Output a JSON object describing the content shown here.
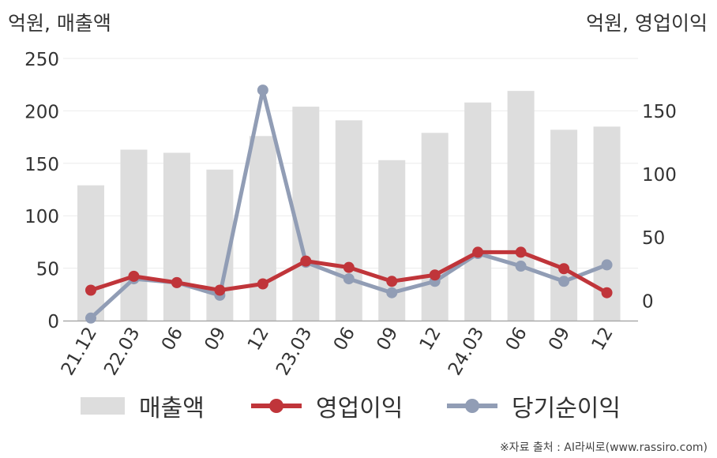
{
  "chart_data": {
    "type": "bar",
    "categories": [
      "21.12",
      "22.03",
      "06",
      "09",
      "12",
      "23.03",
      "06",
      "09",
      "12",
      "24.03",
      "06",
      "09",
      "12"
    ],
    "y_left_label": "억원, 매출액",
    "y_right_label": "억원, 영업이익",
    "y_left_lim": [
      0,
      250
    ],
    "y_left_ticks": [
      0,
      50,
      100,
      150,
      200,
      250
    ],
    "y_right_lim": [
      -16,
      191
    ],
    "y_right_ticks": [
      0,
      50,
      100,
      150
    ],
    "grid": true,
    "legend_position": "bottom",
    "series": [
      {
        "name": "매출액",
        "type": "bar",
        "axis": "left",
        "color": "#dddddd",
        "values": [
          129,
          163,
          160,
          144,
          176,
          204,
          191,
          153,
          179,
          208,
          219,
          182,
          185
        ]
      },
      {
        "name": "영업이익",
        "type": "line",
        "axis": "right",
        "color": "#c0353a",
        "values": [
          8,
          19,
          14,
          8,
          13,
          31,
          26,
          15,
          20,
          38,
          38,
          25,
          6
        ]
      },
      {
        "name": "당기순이익",
        "type": "line",
        "axis": "right",
        "color": "#919db5",
        "values": [
          -14,
          17,
          14,
          4,
          166,
          30,
          17,
          6,
          15,
          37,
          27,
          15,
          28
        ]
      }
    ]
  },
  "source_note": "※자료 출처 : AI라씨로(www.rassiro.com)"
}
